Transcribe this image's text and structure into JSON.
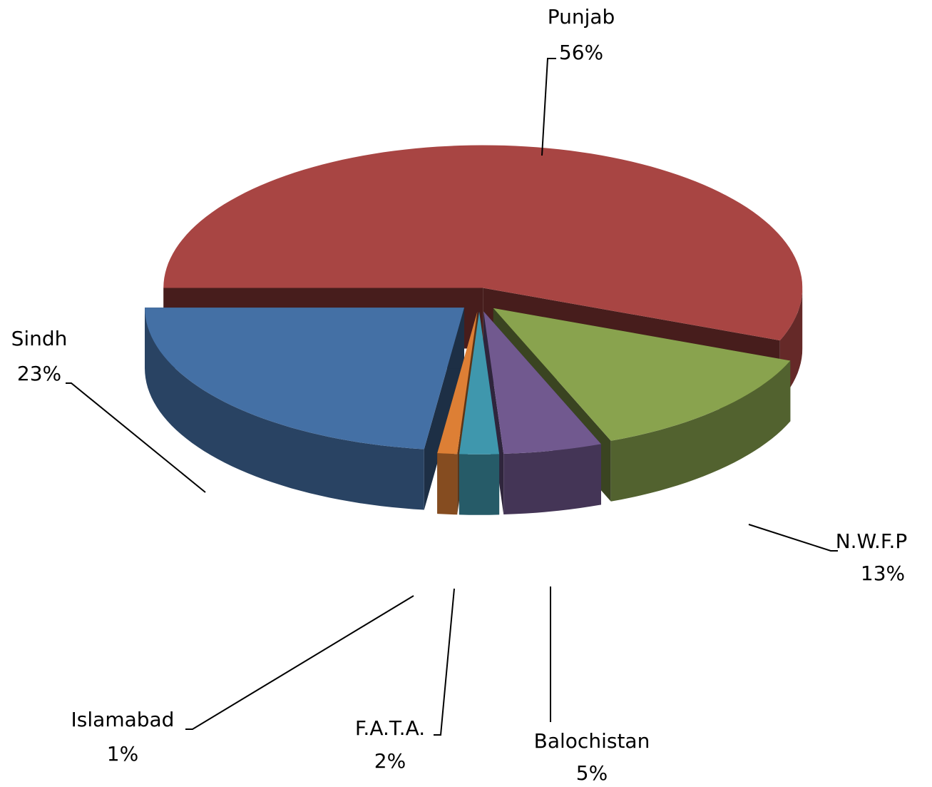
{
  "chart_data": {
    "type": "pie3d",
    "categories": [
      "Punjab",
      "N.W.F.P",
      "Balochistan",
      "F.A.T.A.",
      "Islamabad",
      "Sindh"
    ],
    "values": [
      56,
      13,
      5,
      2,
      1,
      23
    ],
    "value_labels": [
      "56%",
      "13%",
      "5%",
      "2%",
      "1%",
      "23%"
    ],
    "colors": [
      "#a84543",
      "#89a34e",
      "#71598f",
      "#3f97ad",
      "#dd7f35",
      "#4470a5"
    ]
  }
}
